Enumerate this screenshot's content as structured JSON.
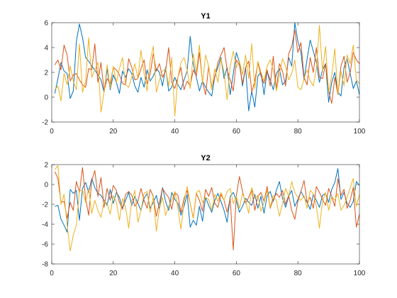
{
  "chart_data": [
    {
      "type": "line",
      "title": "Y1",
      "xlabel": "",
      "ylabel": "",
      "xlim": [
        0,
        100
      ],
      "ylim": [
        -2,
        6
      ],
      "xticks": [
        0,
        20,
        40,
        60,
        80,
        100
      ],
      "yticks": [
        -2,
        0,
        2,
        4,
        6
      ],
      "grid": false,
      "x": [
        1,
        2,
        3,
        4,
        5,
        6,
        7,
        8,
        9,
        10,
        11,
        12,
        13,
        14,
        15,
        16,
        17,
        18,
        19,
        20,
        21,
        22,
        23,
        24,
        25,
        26,
        27,
        28,
        29,
        30,
        31,
        32,
        33,
        34,
        35,
        36,
        37,
        38,
        39,
        40,
        41,
        42,
        43,
        44,
        45,
        46,
        47,
        48,
        49,
        50,
        51,
        52,
        53,
        54,
        55,
        56,
        57,
        58,
        59,
        60,
        61,
        62,
        63,
        64,
        65,
        66,
        67,
        68,
        69,
        70,
        71,
        72,
        73,
        74,
        75,
        76,
        77,
        78,
        79,
        80,
        81,
        82,
        83,
        84,
        85,
        86,
        87,
        88,
        89,
        90,
        91,
        92,
        93,
        94,
        95,
        96,
        97,
        98,
        99,
        100
      ],
      "series": [
        {
          "color": "#0072BD",
          "values": [
            0.3,
            1.5,
            2.8,
            2.1,
            1.9,
            -0.1,
            0.5,
            4.5,
            5.9,
            4.8,
            3.2,
            2.9,
            2.5,
            2.2,
            1.8,
            1.4,
            0.4,
            2.3,
            0.6,
            1.8,
            1.2,
            0.3,
            2.1,
            1.6,
            2.3,
            1.9,
            0.9,
            0.4,
            1.6,
            0.8,
            2.2,
            1.3,
            1.7,
            2.3,
            2.0,
            0.9,
            2.4,
            0.5,
            0.8,
            1.6,
            1.0,
            0.6,
            1.4,
            2.1,
            4.9,
            2.7,
            1.6,
            0.5,
            1.3,
            0.8,
            0.4,
            0.1,
            1.7,
            2.4,
            3.2,
            1.5,
            2.4,
            0.2,
            1.9,
            3.6,
            2.8,
            0.9,
            2.4,
            -1.1,
            0.5,
            -0.8,
            1.7,
            2.0,
            0.2,
            2.1,
            1.4,
            0.6,
            1.9,
            2.3,
            1.0,
            1.3,
            3.2,
            2.5,
            6.0,
            4.5,
            3.6,
            1.4,
            3.1,
            4.6,
            3.7,
            2.8,
            1.2,
            2.2,
            2.7,
            -0.4,
            1.2,
            2.0,
            0.4,
            0.1,
            2.4,
            3.1,
            1.9,
            0.7,
            1.3,
            0.2
          ]
        },
        {
          "color": "#D95319",
          "values": [
            2.6,
            3.0,
            2.2,
            4.2,
            3.4,
            1.3,
            1.8,
            1.9,
            1.4,
            1.0,
            0.8,
            2.3,
            2.2,
            4.3,
            1.2,
            2.8,
            0.5,
            1.5,
            1.1,
            2.4,
            2.2,
            1.8,
            1.1,
            1.0,
            3.1,
            2.4,
            1.4,
            1.5,
            2.3,
            3.0,
            1.1,
            1.9,
            3.5,
            2.1,
            2.7,
            1.6,
            2.1,
            4.0,
            1.2,
            0.7,
            1.6,
            2.4,
            0.6,
            1.3,
            0.9,
            2.2,
            1.7,
            3.6,
            1.2,
            0.2,
            2.5,
            0.8,
            1.6,
            2.8,
            3.4,
            4.0,
            2.2,
            1.4,
            0.5,
            3.0,
            2.6,
            1.1,
            2.4,
            2.9,
            0.4,
            1.3,
            2.8,
            1.7,
            1.1,
            2.2,
            0.9,
            3.3,
            0.6,
            2.7,
            2.1,
            0.9,
            3.5,
            4.1,
            5.4,
            3.6,
            4.4,
            1.6,
            1.0,
            3.2,
            2.0,
            4.0,
            1.6,
            1.5,
            2.7,
            0.5,
            -0.5,
            1.6,
            0.2,
            2.5,
            3.3,
            1.2,
            2.0,
            3.6,
            3.0,
            2.7
          ]
        },
        {
          "color": "#EDB120",
          "values": [
            0.6,
            0.9,
            -0.3,
            1.9,
            1.0,
            2.5,
            1.3,
            0.6,
            4.3,
            0.4,
            1.3,
            4.8,
            1.6,
            2.2,
            2.8,
            -1.2,
            0.4,
            2.6,
            0.7,
            2.5,
            1.2,
            2.3,
            3.2,
            1.0,
            0.8,
            1.6,
            2.7,
            1.5,
            3.8,
            1.9,
            0.5,
            2.9,
            4.1,
            0.4,
            1.4,
            2.1,
            2.3,
            0.9,
            3.2,
            -1.5,
            1.6,
            2.8,
            3.2,
            2.2,
            0.7,
            3.5,
            2.0,
            4.2,
            1.1,
            3.4,
            2.5,
            0.6,
            2.3,
            1.2,
            3.1,
            2.0,
            -0.2,
            2.5,
            3.7,
            2.4,
            2.9,
            1.8,
            3.4,
            1.5,
            4.3,
            0.7,
            2.9,
            2.0,
            1.3,
            2.5,
            3.0,
            2.2,
            0.5,
            1.8,
            3.1,
            2.5,
            1.4,
            1.9,
            3.0,
            0.8,
            0.6,
            1.5,
            2.2,
            1.3,
            0.9,
            2.3,
            5.8,
            2.1,
            4.1,
            0.4,
            1.7,
            3.9,
            0.2,
            2.1,
            0.9,
            3.4,
            2.7,
            4.2,
            1.4,
            1.1
          ]
        }
      ]
    },
    {
      "type": "line",
      "title": "Y2",
      "xlabel": "",
      "ylabel": "",
      "xlim": [
        0,
        100
      ],
      "ylim": [
        -8,
        2
      ],
      "xticks": [
        0,
        20,
        40,
        60,
        80,
        100
      ],
      "yticks": [
        -8,
        -6,
        -4,
        -2,
        0,
        2
      ],
      "grid": false,
      "x": [
        1,
        2,
        3,
        4,
        5,
        6,
        7,
        8,
        9,
        10,
        11,
        12,
        13,
        14,
        15,
        16,
        17,
        18,
        19,
        20,
        21,
        22,
        23,
        24,
        25,
        26,
        27,
        28,
        29,
        30,
        31,
        32,
        33,
        34,
        35,
        36,
        37,
        38,
        39,
        40,
        41,
        42,
        43,
        44,
        45,
        46,
        47,
        48,
        49,
        50,
        51,
        52,
        53,
        54,
        55,
        56,
        57,
        58,
        59,
        60,
        61,
        62,
        63,
        64,
        65,
        66,
        67,
        68,
        69,
        70,
        71,
        72,
        73,
        74,
        75,
        76,
        77,
        78,
        79,
        80,
        81,
        82,
        83,
        84,
        85,
        86,
        87,
        88,
        89,
        90,
        91,
        92,
        93,
        94,
        95,
        96,
        97,
        98,
        99,
        100
      ],
      "series": [
        {
          "color": "#0072BD",
          "values": [
            -2.2,
            -2.1,
            -3.5,
            -4.1,
            -4.8,
            -0.5,
            -0.9,
            -0.6,
            -3.6,
            -0.4,
            0.2,
            -0.8,
            0.6,
            -0.3,
            -0.9,
            -1.1,
            -1.6,
            -2.1,
            -0.5,
            -1.9,
            -0.8,
            -1.3,
            -2.4,
            -1.6,
            -0.8,
            -2.1,
            -1.2,
            -1.9,
            -2.6,
            -1.4,
            -0.9,
            -2.4,
            -1.8,
            -1.1,
            -2.5,
            -0.3,
            -1.7,
            -2.6,
            -0.8,
            -1.5,
            -1.9,
            -3.1,
            -2.2,
            -1.0,
            -4.3,
            -3.6,
            -4.1,
            -2.2,
            -3.7,
            -1.3,
            -2.1,
            -2.8,
            -1.6,
            -0.9,
            -1.7,
            -2.6,
            -3.8,
            -1.2,
            -0.8,
            -1.6,
            -2.8,
            -2.2,
            -1.4,
            -1.8,
            -2.1,
            -1.0,
            -2.4,
            -1.2,
            -2.9,
            -1.1,
            -0.7,
            -1.7,
            -0.6,
            0.3,
            -1.4,
            -2.3,
            -1.2,
            -0.6,
            -2.2,
            -1.5,
            -0.7,
            -1.3,
            -1.8,
            -2.5,
            -1.0,
            -1.6,
            -2.3,
            -1.1,
            -0.9,
            -1.8,
            -0.5,
            0.2,
            1.6,
            -1.5,
            -0.8,
            -1.9,
            -2.3,
            -1.7,
            0.3,
            -0.1
          ]
        },
        {
          "color": "#D95319",
          "values": [
            1.3,
            0.6,
            -1.8,
            -1.7,
            -3.4,
            -1.8,
            -2.6,
            0.3,
            -0.8,
            1.7,
            -1.4,
            -3.1,
            0.4,
            1.4,
            -1.2,
            0.7,
            -2.3,
            -0.4,
            -1.6,
            -0.1,
            -0.6,
            -1.8,
            -2.5,
            -1.0,
            -0.7,
            -1.1,
            -2.2,
            -1.7,
            -0.4,
            -1.6,
            -2.4,
            -0.5,
            -1.2,
            -3.2,
            -1.8,
            -0.4,
            -0.9,
            -1.3,
            -2.5,
            -0.8,
            -1.1,
            -2.8,
            -1.4,
            -0.6,
            -1.9,
            -3.4,
            -0.9,
            -1.6,
            -2.7,
            -0.5,
            -1.2,
            -0.3,
            -1.9,
            -2.3,
            -1.0,
            -1.6,
            -2.8,
            -1.4,
            -6.6,
            -1.1,
            0.8,
            -0.7,
            -1.9,
            -1.3,
            -0.5,
            -2.6,
            -1.2,
            -0.8,
            -1.7,
            -0.2,
            -2.4,
            -1.5,
            -0.9,
            -1.3,
            -0.6,
            -2.0,
            -1.1,
            -2.6,
            -3.5,
            -1.7,
            -0.7,
            0.4,
            -1.8,
            -1.3,
            -2.4,
            -0.2,
            -0.8,
            -1.5,
            -2.1,
            -0.4,
            -1.2,
            -2.2,
            0.6,
            -1.1,
            -0.5,
            -2.4,
            -1.6,
            -0.3,
            -4.3,
            -3.0
          ]
        },
        {
          "color": "#EDB120",
          "values": [
            1.5,
            1.9,
            -2.0,
            -1.0,
            -4.1,
            -6.7,
            -5.1,
            -4.1,
            -0.6,
            -0.6,
            -1.8,
            -0.4,
            -2.9,
            -1.6,
            -2.6,
            -3.3,
            -1.7,
            -1.9,
            -3.0,
            -1.1,
            -1.8,
            -3.6,
            -1.4,
            -2.3,
            -4.4,
            -1.6,
            -0.6,
            -3.8,
            -2.6,
            -0.9,
            -0.7,
            -2.8,
            -1.2,
            -4.7,
            -2.4,
            -1.3,
            -3.1,
            -2.2,
            -1.6,
            -0.7,
            -2.4,
            -4.5,
            -1.8,
            -0.2,
            -1.9,
            -3.4,
            -0.8,
            -0.6,
            -1.8,
            -1.3,
            -1.5,
            -2.6,
            -1.0,
            -1.7,
            -0.8,
            -1.6,
            -0.7,
            -0.4,
            -1.9,
            -1.2,
            -2.4,
            -0.9,
            -1.7,
            -2.9,
            -0.3,
            -1.4,
            -1.1,
            -2.7,
            -1.8,
            -0.6,
            -2.3,
            -1.1,
            -1.6,
            -3.2,
            -1.9,
            -0.4,
            -1.2,
            0.3,
            -0.8,
            -1.3,
            -1.6,
            -1.1,
            -2.4,
            -0.6,
            -0.9,
            -2.2,
            -4.4,
            -1.7,
            -0.8,
            -2.6,
            -1.2,
            -1.6,
            -0.9,
            -2.6,
            -2.1,
            -1.3,
            -0.3,
            0.6,
            -2.2,
            -1.0
          ]
        }
      ]
    }
  ]
}
